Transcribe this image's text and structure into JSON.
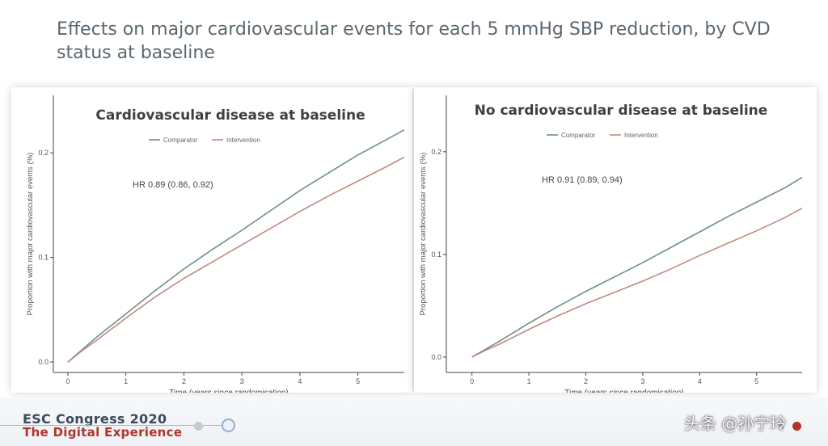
{
  "slide": {
    "title": "Effects on major cardiovascular events for each 5 mmHg SBP reduction, by CVD status at baseline"
  },
  "footer": {
    "event_name": "ESC Congress 2020",
    "event_sub": "The Digital Experience",
    "watermark": "头条 @孙宁玲",
    "colors": {
      "accent_red": "#b0342a",
      "accent_blue": "#8fb0d8"
    }
  },
  "chart_data": [
    {
      "type": "line",
      "title": "Cardiovascular disease at baseline",
      "xlabel": "Time (years since randomisation)",
      "ylabel": "Proportion with major cardiovascular events (%)",
      "xlim": [
        -0.25,
        5.8
      ],
      "ylim": [
        -0.01,
        0.255
      ],
      "xticks": [
        0,
        1,
        2,
        3,
        4,
        5
      ],
      "yticks": [
        0.0,
        0.1,
        0.2
      ],
      "ytick_labels": [
        "0.0",
        "0.1",
        "0.2"
      ],
      "legend": "top-center",
      "annotation": "HR 0.89 (0.86, 0.92)",
      "series": [
        {
          "name": "Comparator",
          "color": "#6f8f8c",
          "x": [
            0,
            0.25,
            0.5,
            1,
            1.5,
            2,
            2.5,
            3,
            3.5,
            4,
            4.5,
            5,
            5.5,
            5.8
          ],
          "y": [
            0,
            0.012,
            0.024,
            0.046,
            0.068,
            0.089,
            0.108,
            0.126,
            0.145,
            0.164,
            0.181,
            0.198,
            0.213,
            0.222
          ]
        },
        {
          "name": "Intervention",
          "color": "#c08a80",
          "x": [
            0,
            0.25,
            0.5,
            1,
            1.5,
            2,
            2.5,
            3,
            3.5,
            4,
            4.5,
            5,
            5.5,
            5.8
          ],
          "y": [
            0,
            0.011,
            0.021,
            0.042,
            0.062,
            0.08,
            0.096,
            0.112,
            0.128,
            0.144,
            0.159,
            0.173,
            0.187,
            0.196
          ]
        }
      ]
    },
    {
      "type": "line",
      "title": "No cardiovascular disease at baseline",
      "xlabel": "Time (years since randomisation)",
      "ylabel": "Proportion with major cardiovascular events (%)",
      "xlim": [
        -0.45,
        5.8
      ],
      "ylim": [
        -0.015,
        0.255
      ],
      "xticks": [
        0,
        1,
        2,
        3,
        4,
        5
      ],
      "yticks": [
        0.0,
        0.1,
        0.2
      ],
      "ytick_labels": [
        "0.0",
        "0.1",
        "0.2"
      ],
      "legend": "top-center",
      "annotation": "HR 0.91 (0.89, 0.94)",
      "series": [
        {
          "name": "Comparator",
          "color": "#6f8f8c",
          "x": [
            0,
            0.25,
            0.5,
            1,
            1.5,
            2,
            2.5,
            3,
            3.5,
            4,
            4.5,
            5,
            5.5,
            5.8
          ],
          "y": [
            0,
            0.008,
            0.016,
            0.033,
            0.049,
            0.064,
            0.078,
            0.092,
            0.107,
            0.122,
            0.137,
            0.151,
            0.165,
            0.175
          ]
        },
        {
          "name": "Intervention",
          "color": "#c08a80",
          "x": [
            0,
            0.25,
            0.5,
            1,
            1.5,
            2,
            2.5,
            3,
            3.5,
            4,
            4.5,
            5,
            5.5,
            5.8
          ],
          "y": [
            0,
            0.007,
            0.013,
            0.027,
            0.04,
            0.052,
            0.063,
            0.074,
            0.086,
            0.099,
            0.111,
            0.123,
            0.136,
            0.145
          ]
        }
      ]
    }
  ]
}
